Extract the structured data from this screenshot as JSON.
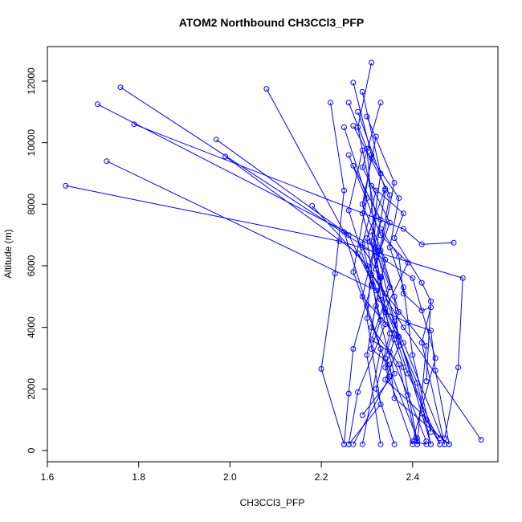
{
  "chart_data": {
    "type": "line",
    "title": "ATOM2 Northbound CH3CCl3_PFP",
    "xlabel": "CH3CCl3_PFP",
    "ylabel": "Altitude (m)",
    "xlim": [
      1.6,
      2.6
    ],
    "ylim": [
      0,
      12600
    ],
    "x_ticks": [
      1.6,
      1.8,
      2.0,
      2.2,
      2.4
    ],
    "x_tick_labels": [
      "1.6",
      "1.8",
      "2.0",
      "2.2",
      "2.4"
    ],
    "y_ticks": [
      0,
      2000,
      4000,
      6000,
      8000,
      10000,
      12000
    ],
    "y_tick_labels": [
      "0",
      "2000",
      "4000",
      "6000",
      "8000",
      "10000",
      "12000"
    ],
    "grid": false,
    "line_color": "#0000ff",
    "marker": "open-circle",
    "series": [
      {
        "values": [
          [
            1.76,
            11800
          ],
          [
            2.4,
            5600
          ],
          [
            2.45,
            3000
          ],
          [
            2.4,
            300
          ],
          [
            2.43,
            200
          ]
        ]
      },
      {
        "values": [
          [
            1.71,
            11250
          ],
          [
            2.32,
            6600
          ],
          [
            2.36,
            4200
          ],
          [
            2.44,
            200
          ]
        ]
      },
      {
        "values": [
          [
            1.79,
            10600
          ],
          [
            2.38,
            7200
          ],
          [
            2.42,
            6700
          ],
          [
            2.49,
            6750
          ]
        ]
      },
      {
        "values": [
          [
            1.73,
            9400
          ],
          [
            2.32,
            5200
          ],
          [
            2.38,
            3500
          ],
          [
            2.47,
            200
          ]
        ]
      },
      {
        "values": [
          [
            1.64,
            8600
          ],
          [
            2.24,
            6800
          ],
          [
            2.51,
            5600
          ],
          [
            2.5,
            2700
          ],
          [
            2.47,
            400
          ]
        ]
      },
      {
        "values": [
          [
            2.08,
            11750
          ],
          [
            2.25,
            7100
          ],
          [
            2.3,
            4700
          ],
          [
            2.35,
            2400
          ],
          [
            2.27,
            200
          ]
        ]
      },
      {
        "values": [
          [
            1.97,
            10100
          ],
          [
            2.26,
            7000
          ],
          [
            2.33,
            4900
          ],
          [
            2.38,
            2700
          ],
          [
            2.41,
            300
          ]
        ]
      },
      {
        "values": [
          [
            1.99,
            9550
          ],
          [
            2.28,
            6400
          ],
          [
            2.34,
            5100
          ],
          [
            2.43,
            3400
          ],
          [
            2.41,
            200
          ]
        ]
      },
      {
        "values": [
          [
            2.18,
            7950
          ],
          [
            2.3,
            6000
          ],
          [
            2.38,
            4000
          ],
          [
            2.55,
            350
          ]
        ]
      },
      {
        "values": [
          [
            2.22,
            11300
          ],
          [
            2.25,
            8450
          ],
          [
            2.23,
            5750
          ],
          [
            2.2,
            2650
          ],
          [
            2.25,
            200
          ]
        ]
      },
      {
        "values": [
          [
            2.27,
            11950
          ],
          [
            2.31,
            9600
          ],
          [
            2.29,
            7700
          ],
          [
            2.33,
            5600
          ],
          [
            2.3,
            3100
          ],
          [
            2.33,
            200
          ]
        ]
      },
      {
        "values": [
          [
            2.31,
            12600
          ],
          [
            2.28,
            10500
          ],
          [
            2.32,
            7600
          ],
          [
            2.3,
            4300
          ],
          [
            2.33,
            1500
          ],
          [
            2.26,
            200
          ]
        ]
      },
      {
        "values": [
          [
            2.29,
            11650
          ],
          [
            2.33,
            9000
          ],
          [
            2.31,
            6800
          ],
          [
            2.34,
            4100
          ],
          [
            2.28,
            1900
          ],
          [
            2.26,
            200
          ]
        ]
      },
      {
        "values": [
          [
            2.26,
            11300
          ],
          [
            2.3,
            9800
          ],
          [
            2.32,
            6300
          ],
          [
            2.35,
            3800
          ],
          [
            2.32,
            2000
          ],
          [
            2.36,
            200
          ]
        ]
      },
      {
        "values": [
          [
            2.33,
            11300
          ],
          [
            2.29,
            9200
          ],
          [
            2.35,
            7400
          ],
          [
            2.31,
            5700
          ],
          [
            2.36,
            3600
          ],
          [
            2.34,
            2700
          ],
          [
            2.4,
            200
          ]
        ]
      },
      {
        "values": [
          [
            2.28,
            11000
          ],
          [
            2.34,
            8500
          ],
          [
            2.3,
            6900
          ],
          [
            2.32,
            4700
          ],
          [
            2.36,
            2500
          ],
          [
            2.29,
            1150
          ]
        ]
      },
      {
        "values": [
          [
            2.25,
            10500
          ],
          [
            2.3,
            8200
          ],
          [
            2.27,
            5800
          ],
          [
            2.33,
            3300
          ],
          [
            2.29,
            200
          ]
        ]
      },
      {
        "values": [
          [
            2.3,
            10850
          ],
          [
            2.36,
            8700
          ],
          [
            2.33,
            6500
          ],
          [
            2.37,
            4500
          ],
          [
            2.34,
            3000
          ],
          [
            2.41,
            400
          ]
        ]
      },
      {
        "values": [
          [
            2.27,
            10550
          ],
          [
            2.35,
            8300
          ],
          [
            2.32,
            5900
          ],
          [
            2.37,
            3700
          ],
          [
            2.43,
            1000
          ],
          [
            2.46,
            200
          ]
        ]
      },
      {
        "values": [
          [
            2.32,
            10200
          ],
          [
            2.29,
            8000
          ],
          [
            2.34,
            6200
          ],
          [
            2.31,
            4000
          ],
          [
            2.37,
            2800
          ],
          [
            2.41,
            200
          ]
        ]
      },
      {
        "values": [
          [
            2.26,
            9600
          ],
          [
            2.33,
            7000
          ],
          [
            2.39,
            6100
          ],
          [
            2.34,
            4600
          ],
          [
            2.41,
            2200
          ],
          [
            2.44,
            200
          ]
        ]
      },
      {
        "values": [
          [
            2.29,
            9750
          ],
          [
            2.26,
            7800
          ],
          [
            2.31,
            5400
          ],
          [
            2.27,
            3300
          ],
          [
            2.26,
            1850
          ],
          [
            2.25,
            200
          ]
        ]
      },
      {
        "values": [
          [
            2.31,
            9500
          ],
          [
            2.37,
            8200
          ],
          [
            2.35,
            6600
          ],
          [
            2.38,
            5300
          ],
          [
            2.4,
            3100
          ],
          [
            2.44,
            600
          ]
        ]
      },
      {
        "values": [
          [
            2.27,
            9250
          ],
          [
            2.33,
            7500
          ],
          [
            2.29,
            5000
          ],
          [
            2.36,
            3800
          ],
          [
            2.39,
            2500
          ],
          [
            2.46,
            200
          ]
        ]
      },
      {
        "values": [
          [
            2.31,
            8600
          ],
          [
            2.38,
            7700
          ],
          [
            2.36,
            6900
          ],
          [
            2.42,
            5450
          ],
          [
            2.44,
            4850
          ],
          [
            2.43,
            2250
          ]
        ]
      },
      {
        "values": [
          [
            2.34,
            8450
          ],
          [
            2.32,
            6450
          ],
          [
            2.35,
            5300
          ],
          [
            2.31,
            3600
          ],
          [
            2.35,
            3200
          ],
          [
            2.39,
            1800
          ],
          [
            2.43,
            300
          ]
        ]
      },
      {
        "values": [
          [
            2.33,
            7200
          ],
          [
            2.37,
            6300
          ],
          [
            2.38,
            5100
          ],
          [
            2.42,
            4550
          ],
          [
            2.44,
            4650
          ],
          [
            2.42,
            3500
          ],
          [
            2.47,
            200
          ]
        ]
      },
      {
        "values": [
          [
            2.32,
            8450
          ],
          [
            2.29,
            6700
          ],
          [
            2.33,
            4250
          ],
          [
            2.31,
            3300
          ],
          [
            2.35,
            2800
          ],
          [
            2.36,
            1700
          ],
          [
            2.48,
            200
          ]
        ]
      },
      {
        "values": [
          [
            2.29,
            6600
          ],
          [
            2.33,
            5650
          ],
          [
            2.34,
            4500
          ],
          [
            2.39,
            4150
          ],
          [
            2.44,
            3900
          ],
          [
            2.45,
            2600
          ],
          [
            2.48,
            200
          ]
        ]
      },
      {
        "values": [
          [
            2.31,
            7100
          ],
          [
            2.36,
            5000
          ],
          [
            2.37,
            3400
          ],
          [
            2.34,
            2300
          ],
          [
            2.42,
            1200
          ],
          [
            2.46,
            400
          ]
        ]
      }
    ]
  }
}
